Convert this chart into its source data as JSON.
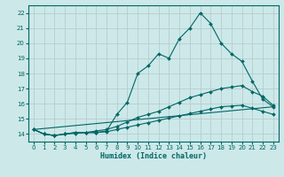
{
  "xlabel": "Humidex (Indice chaleur)",
  "ylabel": "",
  "background_color": "#cce8e8",
  "grid_color": "#b8cccc",
  "line_color": "#006666",
  "xlim": [
    -0.5,
    23.5
  ],
  "ylim": [
    13.5,
    22.5
  ],
  "xticks": [
    0,
    1,
    2,
    3,
    4,
    5,
    6,
    7,
    8,
    9,
    10,
    11,
    12,
    13,
    14,
    15,
    16,
    17,
    18,
    19,
    20,
    21,
    22,
    23
  ],
  "yticks": [
    14,
    15,
    16,
    17,
    18,
    19,
    20,
    21,
    22
  ],
  "lines": [
    {
      "x": [
        0,
        1,
        2,
        3,
        4,
        5,
        6,
        7,
        8,
        9,
        10,
        11,
        12,
        13,
        14,
        15,
        16,
        17,
        18,
        19,
        20,
        21,
        22,
        23
      ],
      "y": [
        14.3,
        14.0,
        13.9,
        14.0,
        14.1,
        14.1,
        14.1,
        14.2,
        15.3,
        16.1,
        18.0,
        18.5,
        19.3,
        19.0,
        20.3,
        21.0,
        22.0,
        21.3,
        20.0,
        19.3,
        18.8,
        17.5,
        16.3,
        15.8
      ],
      "has_marker": true
    },
    {
      "x": [
        0,
        1,
        2,
        3,
        4,
        5,
        6,
        7,
        8,
        9,
        10,
        11,
        12,
        13,
        14,
        15,
        16,
        17,
        18,
        19,
        20,
        21,
        22,
        23
      ],
      "y": [
        14.3,
        14.0,
        13.9,
        14.0,
        14.1,
        14.1,
        14.2,
        14.3,
        14.5,
        14.8,
        15.1,
        15.3,
        15.5,
        15.8,
        16.1,
        16.4,
        16.6,
        16.8,
        17.0,
        17.1,
        17.2,
        16.8,
        16.5,
        15.9
      ],
      "has_marker": true
    },
    {
      "x": [
        0,
        1,
        2,
        3,
        4,
        5,
        6,
        7,
        8,
        9,
        10,
        11,
        12,
        13,
        14,
        15,
        16,
        17,
        18,
        19,
        20,
        21,
        22,
        23
      ],
      "y": [
        14.3,
        14.0,
        13.9,
        14.0,
        14.05,
        14.1,
        14.1,
        14.15,
        14.3,
        14.45,
        14.6,
        14.75,
        14.9,
        15.05,
        15.2,
        15.35,
        15.5,
        15.65,
        15.8,
        15.85,
        15.9,
        15.7,
        15.5,
        15.3
      ],
      "has_marker": true
    },
    {
      "x": [
        0,
        23
      ],
      "y": [
        14.3,
        15.8
      ],
      "has_marker": false
    }
  ],
  "marker": "D",
  "markersize": 2.0
}
